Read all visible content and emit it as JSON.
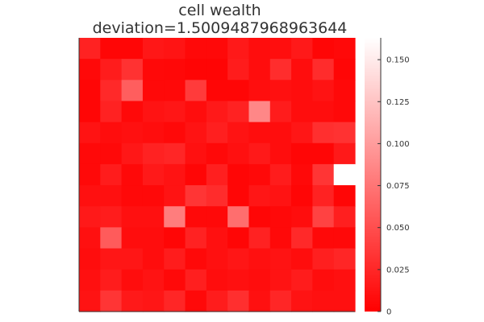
{
  "chart_data": {
    "type": "heatmap",
    "title": [
      "cell wealth",
      "deviation=1.5009487968963644"
    ],
    "xlabel": "",
    "ylabel": "",
    "grid": false,
    "legend": "colorbar-right",
    "n_rows": 13,
    "n_cols": 13,
    "color_low": "#ff0000",
    "color_high": "#ffffff",
    "colorbar": {
      "min": 0,
      "max": 0.163,
      "ticks": [
        {
          "value": 0,
          "label": "0"
        },
        {
          "value": 0.025,
          "label": "0.025"
        },
        {
          "value": 0.05,
          "label": "0.050"
        },
        {
          "value": 0.075,
          "label": "0.075"
        },
        {
          "value": 0.1,
          "label": "0.100"
        },
        {
          "value": 0.125,
          "label": "0.125"
        },
        {
          "value": 0.15,
          "label": "0.150"
        }
      ]
    },
    "values": [
      [
        0.022,
        0.004,
        0.004,
        0.015,
        0.013,
        0.006,
        0.006,
        0.016,
        0.008,
        0.009,
        0.016,
        0.004,
        0.006
      ],
      [
        0.006,
        0.018,
        0.032,
        0.006,
        0.005,
        0.003,
        0.003,
        0.018,
        0.008,
        0.029,
        0.008,
        0.028,
        0.004
      ],
      [
        0.004,
        0.026,
        0.06,
        0.006,
        0.006,
        0.038,
        0.004,
        0.004,
        0.009,
        0.01,
        0.008,
        0.012,
        0.006
      ],
      [
        0.004,
        0.022,
        0.006,
        0.012,
        0.014,
        0.008,
        0.016,
        0.022,
        0.086,
        0.018,
        0.008,
        0.008,
        0.006
      ],
      [
        0.012,
        0.008,
        0.01,
        0.008,
        0.006,
        0.012,
        0.02,
        0.012,
        0.008,
        0.008,
        0.014,
        0.03,
        0.032
      ],
      [
        0.006,
        0.006,
        0.015,
        0.022,
        0.024,
        0.01,
        0.006,
        0.01,
        0.016,
        0.008,
        0.004,
        0.004,
        0.016
      ],
      [
        0.006,
        0.018,
        0.006,
        0.016,
        0.012,
        0.004,
        0.02,
        0.004,
        0.006,
        0.018,
        0.006,
        0.034,
        0.163
      ],
      [
        0.01,
        0.01,
        0.006,
        0.006,
        0.012,
        0.034,
        0.028,
        0.004,
        0.014,
        0.012,
        0.004,
        0.022,
        0.004
      ],
      [
        0.016,
        0.018,
        0.01,
        0.01,
        0.08,
        0.006,
        0.006,
        0.07,
        0.004,
        0.006,
        0.008,
        0.042,
        0.02
      ],
      [
        0.01,
        0.058,
        0.008,
        0.008,
        0.004,
        0.022,
        0.01,
        0.004,
        0.022,
        0.006,
        0.026,
        0.006,
        0.006
      ],
      [
        0.008,
        0.014,
        0.014,
        0.008,
        0.018,
        0.006,
        0.01,
        0.014,
        0.01,
        0.012,
        0.008,
        0.02,
        0.024
      ],
      [
        0.01,
        0.018,
        0.008,
        0.012,
        0.006,
        0.02,
        0.008,
        0.01,
        0.008,
        0.012,
        0.018,
        0.008,
        0.01
      ],
      [
        0.012,
        0.034,
        0.016,
        0.014,
        0.024,
        0.006,
        0.018,
        0.03,
        0.01,
        0.024,
        0.012,
        0.01,
        0.01
      ]
    ]
  }
}
